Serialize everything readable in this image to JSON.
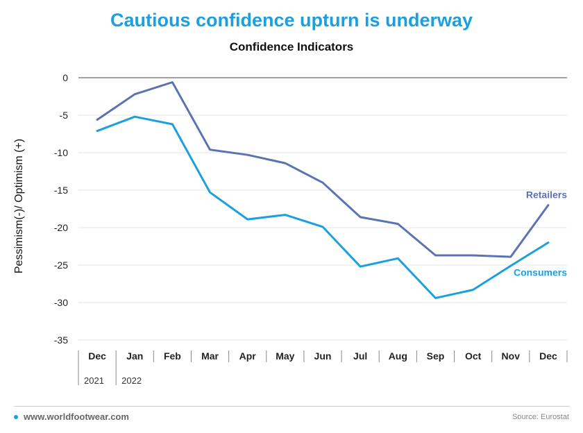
{
  "header": {
    "title": "Cautious confidence upturn is underway",
    "subtitle": "Confidence Indicators"
  },
  "footer": {
    "site": "www.worldfootwear.com",
    "source": "Source: Eurostat"
  },
  "colors": {
    "title": "#1aa0e0",
    "retailers": "#5b73b3",
    "consumers": "#1aa0e0",
    "grid": "#e6e6e6",
    "zero_line": "#444444"
  },
  "chart_data": {
    "type": "line",
    "title": "Confidence Indicators",
    "ylabel": "Pessimism(-)/ Optimism (+)",
    "xlabel": "",
    "categories": [
      "Dec",
      "Jan",
      "Feb",
      "Mar",
      "Apr",
      "May",
      "Jun",
      "Jul",
      "Aug",
      "Sep",
      "Oct",
      "Nov",
      "Dec"
    ],
    "year_labels": [
      "2021",
      "2022"
    ],
    "yticks": [
      0,
      -5,
      -10,
      -15,
      -20,
      -25,
      -30,
      -35
    ],
    "ylim": [
      -35,
      0
    ],
    "grid": true,
    "legend": "direct labels at right end of lines",
    "series": [
      {
        "name": "Retailers",
        "color": "#5b73b3",
        "values": [
          -5.6,
          -2.2,
          -0.6,
          -9.6,
          -10.3,
          -11.4,
          -14.0,
          -18.6,
          -19.5,
          -23.7,
          -23.7,
          -23.9,
          -17.0
        ]
      },
      {
        "name": "Consumers",
        "color": "#1aa0e0",
        "values": [
          -7.1,
          -5.2,
          -6.2,
          -15.3,
          -18.9,
          -18.3,
          -19.9,
          -25.2,
          -24.1,
          -29.4,
          -28.3,
          -25.1,
          -22.0
        ]
      }
    ]
  }
}
